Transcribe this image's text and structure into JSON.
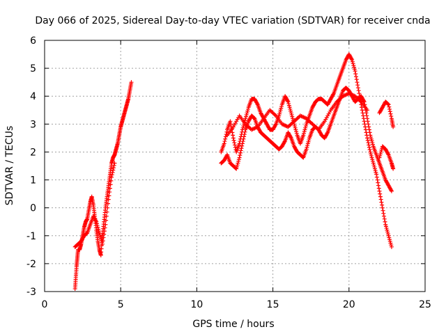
{
  "chart_data": {
    "type": "scatter",
    "title": "Day 066 of 2025, Sidereal Day-to-day VTEC variation (SDTVAR) for receiver cnda",
    "xlabel": "GPS time / hours",
    "ylabel": "SDTVAR / TECUs",
    "xlim": [
      0,
      25
    ],
    "ylim": [
      -3,
      6
    ],
    "xticks": [
      0,
      5,
      10,
      15,
      20,
      25
    ],
    "yticks": [
      -3,
      -2,
      -1,
      0,
      1,
      2,
      3,
      4,
      5,
      6
    ],
    "grid": true,
    "legend": "none",
    "marker": "+",
    "color": "#ff0000",
    "series": [
      {
        "x": [
          2.0,
          2.05,
          2.1,
          2.15,
          2.2,
          2.3,
          2.4,
          2.5,
          2.6,
          2.7,
          2.8,
          2.9,
          3.0,
          3.1,
          3.2,
          3.3,
          3.4,
          3.5,
          3.6,
          3.7,
          3.8,
          3.9,
          4.0,
          4.1,
          4.2,
          4.3,
          4.4,
          4.5,
          4.6,
          4.7,
          4.8,
          4.9,
          5.0,
          5.1,
          5.2,
          5.3,
          5.4,
          5.5,
          5.6,
          5.7
        ],
        "y": [
          -2.9,
          -2.5,
          -2.1,
          -1.8,
          -1.5,
          -1.5,
          -1.3,
          -1.0,
          -0.7,
          -0.5,
          -0.4,
          -0.1,
          0.2,
          0.4,
          0.1,
          -0.3,
          -0.8,
          -1.2,
          -1.5,
          -1.7,
          -1.0,
          -0.5,
          0.0,
          0.4,
          0.8,
          1.2,
          1.6,
          1.8,
          1.9,
          2.1,
          2.3,
          2.6,
          2.9,
          3.1,
          3.3,
          3.5,
          3.7,
          3.9,
          4.2,
          4.5
        ]
      },
      {
        "x": [
          2.0,
          2.2,
          2.4,
          2.6,
          2.8,
          3.0,
          3.2,
          3.4,
          3.6,
          3.8,
          4.0,
          4.2,
          4.4,
          4.6
        ],
        "y": [
          -1.4,
          -1.3,
          -1.2,
          -1.0,
          -0.9,
          -0.6,
          -0.3,
          -0.5,
          -0.9,
          -1.3,
          -0.6,
          0.3,
          1.1,
          1.6
        ]
      },
      {
        "x": [
          11.6,
          11.8,
          12.0,
          12.2,
          12.4,
          12.6,
          12.8,
          13.0,
          13.2,
          13.4,
          13.6,
          13.8,
          14.0,
          14.2,
          14.4,
          14.6,
          14.8,
          15.0,
          15.2,
          15.4,
          15.6,
          15.8,
          16.0,
          16.2,
          16.4,
          16.6,
          16.8,
          17.0,
          17.2,
          17.4,
          17.6,
          17.8,
          18.0,
          18.2,
          18.4,
          18.6,
          18.8,
          19.0,
          19.2,
          19.4,
          19.6,
          19.8,
          20.0,
          20.2,
          20.4,
          20.6,
          20.8,
          21.0,
          21.2,
          21.4,
          21.6,
          21.8,
          22.0,
          22.2,
          22.4,
          22.6,
          22.8
        ],
        "y": [
          2.0,
          2.3,
          2.8,
          3.1,
          2.5,
          2.0,
          2.3,
          2.8,
          3.2,
          3.6,
          3.9,
          3.9,
          3.7,
          3.4,
          3.2,
          3.0,
          2.8,
          2.8,
          3.0,
          3.3,
          3.7,
          4.0,
          3.8,
          3.4,
          3.0,
          2.6,
          2.3,
          2.6,
          3.0,
          3.3,
          3.6,
          3.8,
          3.9,
          3.9,
          3.8,
          3.7,
          3.9,
          4.1,
          4.4,
          4.7,
          5.0,
          5.3,
          5.5,
          5.3,
          4.9,
          4.3,
          3.7,
          3.1,
          2.5,
          2.0,
          1.6,
          1.2,
          0.6,
          0.0,
          -0.6,
          -1.0,
          -1.4
        ]
      },
      {
        "x": [
          11.6,
          11.8,
          12.0,
          12.2,
          12.4,
          12.6,
          12.8,
          13.0,
          13.2,
          13.4,
          13.6,
          13.8,
          14.0,
          14.2,
          14.4,
          14.6,
          14.8,
          15.0,
          15.2,
          15.4,
          15.6,
          15.8,
          16.0,
          16.2,
          16.4,
          16.6,
          16.8,
          17.0,
          17.2,
          17.4,
          17.6,
          17.8,
          18.0,
          18.2,
          18.4,
          18.6,
          18.8,
          19.0,
          19.2,
          19.4,
          19.6,
          19.8,
          20.0,
          20.2,
          20.4,
          20.6,
          20.8,
          21.0,
          21.2,
          21.4,
          21.6,
          21.8,
          22.0,
          22.2,
          22.4,
          22.6,
          22.8
        ],
        "y": [
          1.6,
          1.7,
          1.9,
          1.6,
          1.5,
          1.4,
          1.8,
          2.3,
          2.8,
          3.1,
          3.3,
          3.2,
          2.9,
          2.7,
          2.6,
          2.5,
          2.4,
          2.3,
          2.2,
          2.1,
          2.2,
          2.4,
          2.7,
          2.5,
          2.2,
          2.0,
          1.9,
          1.8,
          2.1,
          2.5,
          2.8,
          2.9,
          2.8,
          2.6,
          2.5,
          2.7,
          3.0,
          3.3,
          3.6,
          3.9,
          4.2,
          4.3,
          4.2,
          4.0,
          3.8,
          3.9,
          4.0,
          3.8,
          3.2,
          2.6,
          2.2,
          1.9,
          1.6,
          1.3,
          1.0,
          0.8,
          0.6
        ]
      },
      {
        "x": [
          12.0,
          12.4,
          12.8,
          13.2,
          13.6,
          14.0,
          14.4,
          14.8,
          15.2,
          15.6,
          16.0,
          16.4,
          16.8,
          17.2,
          17.6,
          18.0,
          18.4,
          18.8,
          19.2,
          19.6,
          20.0,
          20.4,
          20.8,
          21.2
        ],
        "y": [
          2.6,
          2.9,
          3.3,
          3.0,
          2.8,
          2.9,
          3.2,
          3.5,
          3.3,
          3.0,
          2.9,
          3.1,
          3.3,
          3.2,
          3.0,
          2.8,
          3.1,
          3.5,
          3.8,
          4.0,
          4.1,
          4.0,
          3.8,
          3.5
        ]
      },
      {
        "x": [
          22.0,
          22.2,
          22.4,
          22.6,
          22.8,
          22.9
        ],
        "y": [
          3.4,
          3.6,
          3.8,
          3.7,
          3.2,
          2.9
        ]
      },
      {
        "x": [
          22.0,
          22.2,
          22.4,
          22.6,
          22.8,
          22.9
        ],
        "y": [
          1.8,
          2.2,
          2.1,
          1.9,
          1.6,
          1.4
        ]
      }
    ]
  }
}
